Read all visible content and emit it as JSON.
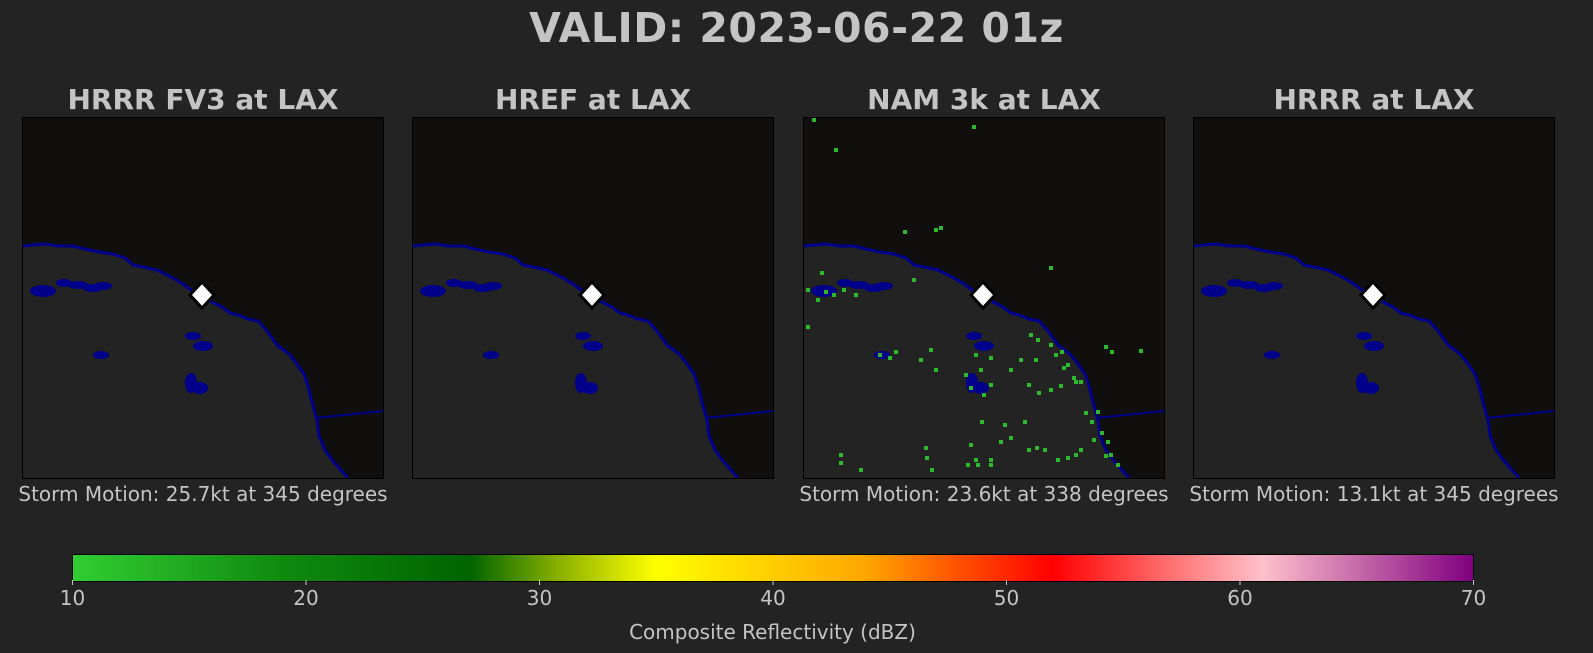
{
  "title": "VALID: 2023-06-22 01z",
  "panels": [
    {
      "title": "HRRR FV3 at LAX",
      "storm_motion": "Storm Motion: 25.7kt at 345 degrees",
      "has_echoes": false
    },
    {
      "title": "HREF at LAX",
      "storm_motion": "",
      "has_echoes": false
    },
    {
      "title": "NAM 3k at LAX",
      "storm_motion": "Storm Motion: 23.6kt at 338 degrees",
      "has_echoes": true
    },
    {
      "title": "HRRR at LAX",
      "storm_motion": "Storm Motion: 13.1kt at 345 degrees",
      "has_echoes": false
    }
  ],
  "colorbar": {
    "label": "Composite Reflectivity (dBZ)",
    "ticks": [
      "10",
      "20",
      "30",
      "40",
      "50",
      "60",
      "70"
    ],
    "range": [
      10,
      70
    ],
    "stops": [
      {
        "dbz": 10,
        "color": "#32cd32"
      },
      {
        "dbz": 19,
        "color": "#0f8a0f"
      },
      {
        "dbz": 27,
        "color": "#006400"
      },
      {
        "dbz": 31,
        "color": "#8fb400"
      },
      {
        "dbz": 35,
        "color": "#ffff00"
      },
      {
        "dbz": 44,
        "color": "#ffa500"
      },
      {
        "dbz": 48,
        "color": "#ff5000"
      },
      {
        "dbz": 52,
        "color": "#ff0000"
      },
      {
        "dbz": 57,
        "color": "#ff7070"
      },
      {
        "dbz": 61,
        "color": "#ffc0cb"
      },
      {
        "dbz": 70,
        "color": "#800080"
      }
    ]
  },
  "map_colors": {
    "ocean": "#110e0e",
    "land": "#232323",
    "coastline": "#00008b",
    "station_marker": "#ffffff",
    "echo": "#2db82d"
  }
}
